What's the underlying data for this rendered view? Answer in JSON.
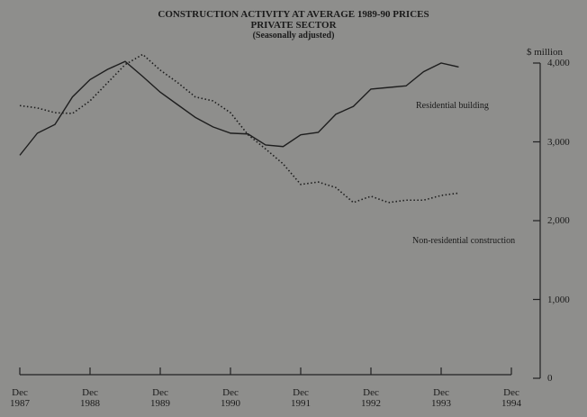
{
  "chart_data": {
    "type": "line",
    "title": "CONSTRUCTION ACTIVITY AT AVERAGE 1989-90 PRICES",
    "subtitle": "PRIVATE SECTOR",
    "note": "(Seasonally adjusted)",
    "y_label": "$ million",
    "x": [
      1987.92,
      1988.17,
      1988.42,
      1988.67,
      1988.92,
      1989.17,
      1989.42,
      1989.67,
      1989.92,
      1990.17,
      1990.42,
      1990.67,
      1990.92,
      1991.17,
      1991.42,
      1991.67,
      1991.92,
      1992.17,
      1992.42,
      1992.67,
      1992.92,
      1993.17,
      1993.42,
      1993.67,
      1993.92,
      1994.17
    ],
    "series": [
      {
        "name": "Residential building",
        "color": "#1e1e1e",
        "dash": "solid",
        "values": [
          2830,
          3110,
          3220,
          3570,
          3790,
          3920,
          4020,
          3830,
          3630,
          3470,
          3310,
          3190,
          3110,
          3100,
          2960,
          2940,
          3090,
          3120,
          3350,
          3450,
          3670,
          3690,
          3710,
          3890,
          4000,
          3950
        ]
      },
      {
        "name": "Non-residential construction",
        "color": "#1e1e1e",
        "dash": "dotted",
        "values": [
          3460,
          3430,
          3370,
          3360,
          3520,
          3750,
          3980,
          4110,
          3910,
          3750,
          3570,
          3520,
          3370,
          3090,
          2910,
          2720,
          2460,
          2490,
          2420,
          2230,
          2310,
          2230,
          2260,
          2260,
          2320,
          2350
        ]
      }
    ],
    "xlim": [
      1987.92,
      1994.92
    ],
    "xticks": [
      {
        "value": 1987.92,
        "label": "Dec 1987"
      },
      {
        "value": 1988.92,
        "label": "Dec 1988"
      },
      {
        "value": 1989.92,
        "label": "Dec 1989"
      },
      {
        "value": 1990.92,
        "label": "Dec 1990"
      },
      {
        "value": 1991.92,
        "label": "Dec 1991"
      },
      {
        "value": 1992.92,
        "label": "Dec 1992"
      },
      {
        "value": 1993.92,
        "label": "Dec 1993"
      },
      {
        "value": 1994.92,
        "label": "Dec 1994"
      }
    ],
    "ylim": [
      0,
      4000
    ],
    "yticks": [
      0,
      {
        "value": 1000,
        "label": "1,000"
      },
      {
        "value": 2000,
        "label": "2,000"
      },
      {
        "value": 3000,
        "label": "3,000"
      },
      {
        "value": 4000,
        "label": "4,000"
      }
    ],
    "y_axis_side": "right"
  }
}
